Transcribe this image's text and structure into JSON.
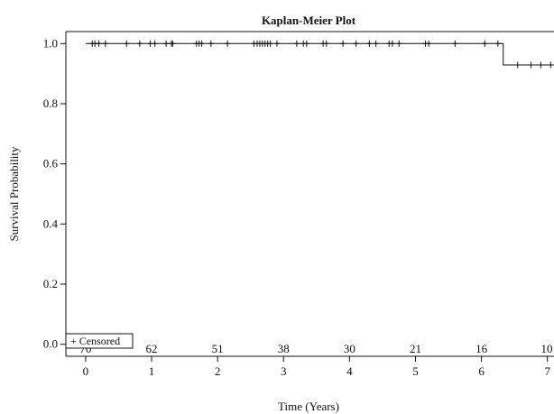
{
  "chart_data": {
    "type": "line",
    "title": "Kaplan-Meier Plot",
    "xlabel": "Time (Years)",
    "ylabel": "Survival Probability",
    "xlim": [
      -0.3,
      7.1
    ],
    "ylim": [
      -0.04,
      1.04
    ],
    "x_ticks": [
      0,
      1,
      2,
      3,
      4,
      5,
      6,
      7
    ],
    "y_ticks": [
      0.0,
      0.2,
      0.4,
      0.6,
      0.8,
      1.0
    ],
    "y_tick_labels": [
      "0.0",
      "0.2",
      "0.4",
      "0.6",
      "0.8",
      "1.0"
    ],
    "grid": false,
    "series": [
      {
        "steps": [
          {
            "x": 0.0,
            "y": 1.0
          },
          {
            "x": 6.33,
            "y": 1.0
          },
          {
            "x": 6.33,
            "y": 0.929
          },
          {
            "x": 7.1,
            "y": 0.929
          }
        ],
        "censored": [
          {
            "x": 0.1,
            "y": 1.0
          },
          {
            "x": 0.14,
            "y": 1.0
          },
          {
            "x": 0.2,
            "y": 1.0
          },
          {
            "x": 0.3,
            "y": 1.0
          },
          {
            "x": 0.62,
            "y": 1.0
          },
          {
            "x": 0.82,
            "y": 1.0
          },
          {
            "x": 0.98,
            "y": 1.0
          },
          {
            "x": 1.05,
            "y": 1.0
          },
          {
            "x": 1.22,
            "y": 1.0
          },
          {
            "x": 1.3,
            "y": 1.0
          },
          {
            "x": 1.32,
            "y": 1.0
          },
          {
            "x": 1.68,
            "y": 1.0
          },
          {
            "x": 1.72,
            "y": 1.0
          },
          {
            "x": 1.76,
            "y": 1.0
          },
          {
            "x": 1.9,
            "y": 1.0
          },
          {
            "x": 2.15,
            "y": 1.0
          },
          {
            "x": 2.55,
            "y": 1.0
          },
          {
            "x": 2.6,
            "y": 1.0
          },
          {
            "x": 2.64,
            "y": 1.0
          },
          {
            "x": 2.68,
            "y": 1.0
          },
          {
            "x": 2.72,
            "y": 1.0
          },
          {
            "x": 2.76,
            "y": 1.0
          },
          {
            "x": 2.8,
            "y": 1.0
          },
          {
            "x": 2.9,
            "y": 1.0
          },
          {
            "x": 3.2,
            "y": 1.0
          },
          {
            "x": 3.3,
            "y": 1.0
          },
          {
            "x": 3.35,
            "y": 1.0
          },
          {
            "x": 3.6,
            "y": 1.0
          },
          {
            "x": 3.65,
            "y": 1.0
          },
          {
            "x": 3.9,
            "y": 1.0
          },
          {
            "x": 4.1,
            "y": 1.0
          },
          {
            "x": 4.3,
            "y": 1.0
          },
          {
            "x": 4.4,
            "y": 1.0
          },
          {
            "x": 4.6,
            "y": 1.0
          },
          {
            "x": 4.65,
            "y": 1.0
          },
          {
            "x": 4.75,
            "y": 1.0
          },
          {
            "x": 5.15,
            "y": 1.0
          },
          {
            "x": 5.2,
            "y": 1.0
          },
          {
            "x": 5.6,
            "y": 1.0
          },
          {
            "x": 6.05,
            "y": 1.0
          },
          {
            "x": 6.25,
            "y": 1.0
          },
          {
            "x": 6.55,
            "y": 0.929
          },
          {
            "x": 6.75,
            "y": 0.929
          },
          {
            "x": 6.9,
            "y": 0.929
          },
          {
            "x": 7.05,
            "y": 0.929
          }
        ]
      }
    ],
    "legend": {
      "placement": "bottom-left",
      "entries": [
        "+ Censored"
      ]
    },
    "at_risk": {
      "x": [
        0,
        1,
        2,
        3,
        4,
        5,
        6,
        7
      ],
      "labels": [
        "70",
        "62",
        "51",
        "38",
        "30",
        "21",
        "16",
        "10"
      ]
    }
  }
}
